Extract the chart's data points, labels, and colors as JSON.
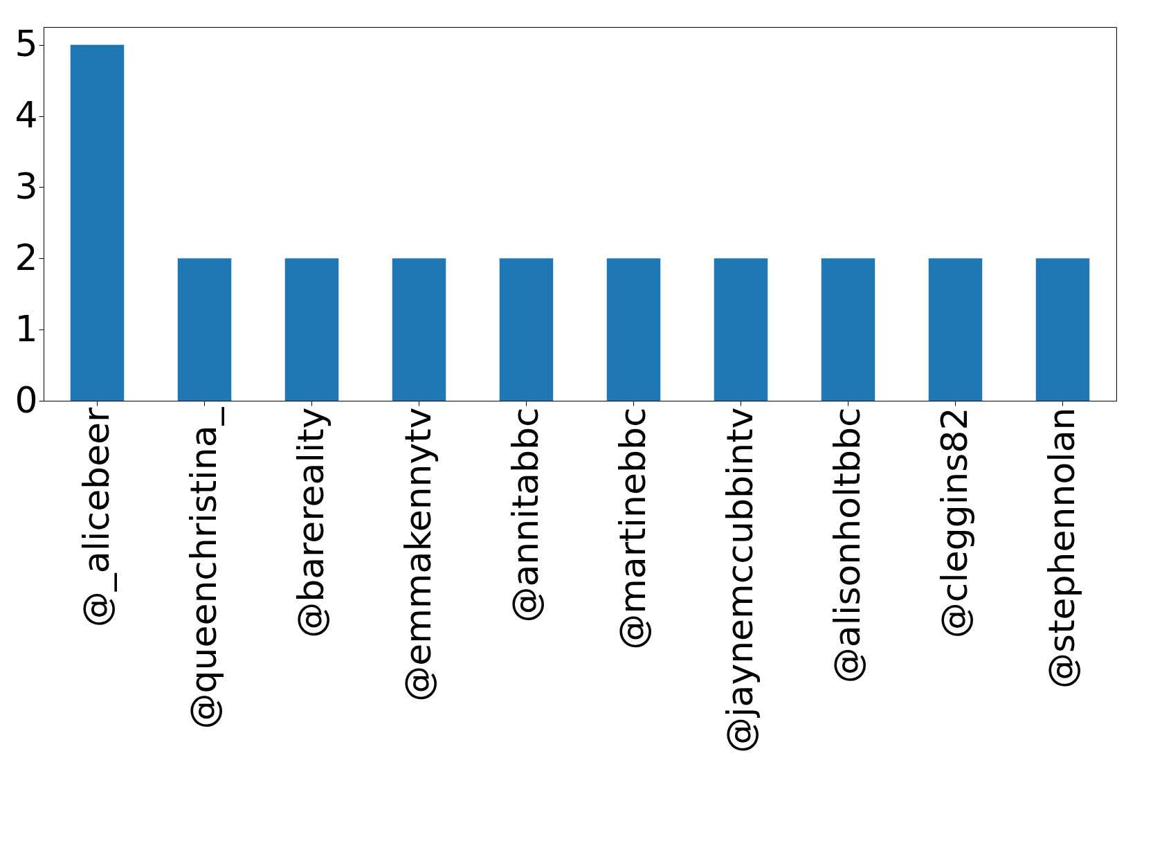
{
  "chart_data": {
    "type": "bar",
    "categories": [
      "@_alicebeer",
      "@queenchristina_",
      "@barereality",
      "@emmakennytv",
      "@annitabbc",
      "@martinebbc",
      "@jaynemccubbintv",
      "@alisonholtbbc",
      "@cleggins82",
      "@stephennolan"
    ],
    "values": [
      5,
      2,
      2,
      2,
      2,
      2,
      2,
      2,
      2,
      2
    ],
    "color": "#1f77b4",
    "ylim": [
      0,
      5.25
    ],
    "yticks": [
      0,
      1,
      2,
      3,
      4,
      5
    ],
    "grid": false
  }
}
